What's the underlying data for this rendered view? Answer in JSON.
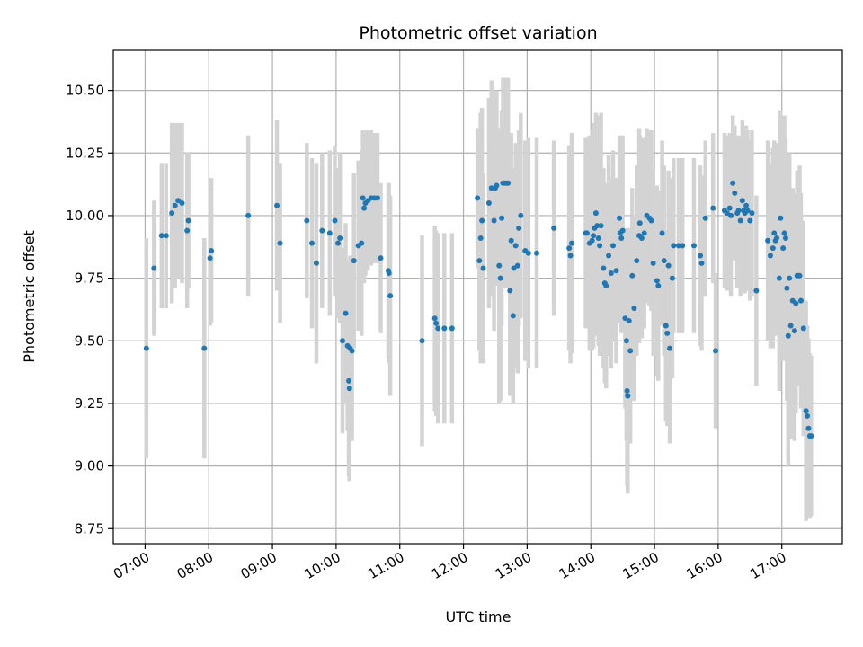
{
  "chart_data": {
    "type": "scatter",
    "title": "Photometric offset variation",
    "xlabel": "UTC time",
    "ylabel": "Photometric offset",
    "x_unit": "hours UTC",
    "xlim": [
      6.5,
      17.95
    ],
    "ylim": [
      8.69,
      10.66
    ],
    "x_ticks": [
      {
        "value": 7,
        "label": "07:00"
      },
      {
        "value": 8,
        "label": "08:00"
      },
      {
        "value": 9,
        "label": "09:00"
      },
      {
        "value": 10,
        "label": "10:00"
      },
      {
        "value": 11,
        "label": "11:00"
      },
      {
        "value": 12,
        "label": "12:00"
      },
      {
        "value": 13,
        "label": "13:00"
      },
      {
        "value": 14,
        "label": "14:00"
      },
      {
        "value": 15,
        "label": "15:00"
      },
      {
        "value": 16,
        "label": "16:00"
      },
      {
        "value": 17,
        "label": "17:00"
      }
    ],
    "y_ticks": [
      {
        "value": 8.75,
        "label": "8.75"
      },
      {
        "value": 9.0,
        "label": "9.00"
      },
      {
        "value": 9.25,
        "label": "9.25"
      },
      {
        "value": 9.5,
        "label": "9.50"
      },
      {
        "value": 9.75,
        "label": "9.75"
      },
      {
        "value": 10.0,
        "label": "10.00"
      },
      {
        "value": 10.25,
        "label": "10.25"
      },
      {
        "value": 10.5,
        "label": "10.50"
      }
    ],
    "grid": true,
    "legend": "none",
    "marker_color": "#1f77b4",
    "errorbar_color": "#d3d3d3",
    "series": [
      {
        "points": [
          [
            7.02,
            9.47,
            0.44
          ],
          [
            7.14,
            9.79,
            0.27
          ],
          [
            7.26,
            9.92,
            0.29
          ],
          [
            7.33,
            9.92,
            0.29
          ],
          [
            7.42,
            10.01,
            0.36
          ],
          [
            7.47,
            10.04,
            0.33
          ],
          [
            7.52,
            10.06,
            0.31
          ],
          [
            7.58,
            10.05,
            0.32
          ],
          [
            7.66,
            9.94,
            0.31
          ],
          [
            7.68,
            9.98,
            0.27
          ],
          [
            7.93,
            9.47,
            0.44
          ],
          [
            8.02,
            9.83,
            0.27
          ],
          [
            8.04,
            9.86,
            0.29
          ],
          [
            8.62,
            10.0,
            0.32
          ],
          [
            9.07,
            10.04,
            0.34
          ],
          [
            9.12,
            9.89,
            0.32
          ],
          [
            9.54,
            9.98,
            0.31
          ],
          [
            9.62,
            9.89,
            0.34
          ],
          [
            9.69,
            9.81,
            0.4
          ],
          [
            9.78,
            9.94,
            0.31
          ],
          [
            9.9,
            9.93,
            0.33
          ],
          [
            9.98,
            9.98,
            0.3
          ],
          [
            10.03,
            9.89,
            0.3
          ],
          [
            10.06,
            9.91,
            0.34
          ],
          [
            10.1,
            9.5,
            0.37
          ],
          [
            10.15,
            9.61,
            0.36
          ],
          [
            10.18,
            9.48,
            0.34
          ],
          [
            10.2,
            9.34,
            0.38
          ],
          [
            10.21,
            9.31,
            0.37
          ],
          [
            10.22,
            9.47,
            0.37
          ],
          [
            10.25,
            9.46,
            0.36
          ],
          [
            10.28,
            9.82,
            0.35
          ],
          [
            10.35,
            9.88,
            0.34
          ],
          [
            10.4,
            9.89,
            0.37
          ],
          [
            10.42,
            10.07,
            0.27
          ],
          [
            10.44,
            10.03,
            0.3
          ],
          [
            10.46,
            10.05,
            0.29
          ],
          [
            10.5,
            10.06,
            0.28
          ],
          [
            10.55,
            10.07,
            0.27
          ],
          [
            10.6,
            10.07,
            0.26
          ],
          [
            10.65,
            10.07,
            0.26
          ],
          [
            10.7,
            9.83,
            0.3
          ],
          [
            10.82,
            9.78,
            0.35
          ],
          [
            10.83,
            9.77,
            0.36
          ],
          [
            10.85,
            9.68,
            0.4
          ],
          [
            11.35,
            9.5,
            0.42
          ],
          [
            11.55,
            9.59,
            0.37
          ],
          [
            11.57,
            9.57,
            0.37
          ],
          [
            11.6,
            9.55,
            0.38
          ],
          [
            11.7,
            9.55,
            0.38
          ],
          [
            11.82,
            9.55,
            0.38
          ],
          [
            12.22,
            10.07,
            0.28
          ],
          [
            12.25,
            9.82,
            0.36
          ],
          [
            12.27,
            9.91,
            0.5
          ],
          [
            12.29,
            9.98,
            0.45
          ],
          [
            12.31,
            9.79,
            0.38
          ],
          [
            12.4,
            10.05,
            0.42
          ],
          [
            12.44,
            10.11,
            0.43
          ],
          [
            12.48,
            9.98,
            0.44
          ],
          [
            12.5,
            10.11,
            0.39
          ],
          [
            12.52,
            10.12,
            0.38
          ],
          [
            12.56,
            9.8,
            0.55
          ],
          [
            12.58,
            9.75,
            0.49
          ],
          [
            12.6,
            9.99,
            0.43
          ],
          [
            12.62,
            10.13,
            0.42
          ],
          [
            12.65,
            10.13,
            0.42
          ],
          [
            12.68,
            10.13,
            0.42
          ],
          [
            12.7,
            10.13,
            0.42
          ],
          [
            12.73,
            9.7,
            0.42
          ],
          [
            12.75,
            9.9,
            0.43
          ],
          [
            12.78,
            9.6,
            0.35
          ],
          [
            12.79,
            9.79,
            0.4
          ],
          [
            12.82,
            9.88,
            0.41
          ],
          [
            12.85,
            9.8,
            0.43
          ],
          [
            12.87,
            9.95,
            0.39
          ],
          [
            12.9,
            10.0,
            0.41
          ],
          [
            12.97,
            9.86,
            0.44
          ],
          [
            13.02,
            9.85,
            0.46
          ],
          [
            13.15,
            9.85,
            0.46
          ],
          [
            13.42,
            9.95,
            0.35
          ],
          [
            13.66,
            9.87,
            0.41
          ],
          [
            13.68,
            9.84,
            0.43
          ],
          [
            13.7,
            9.89,
            0.44
          ],
          [
            13.92,
            9.93,
            0.38
          ],
          [
            13.94,
            9.93,
            0.38
          ],
          [
            13.98,
            9.89,
            0.43
          ],
          [
            14.02,
            9.9,
            0.44
          ],
          [
            14.04,
            9.92,
            0.45
          ],
          [
            14.06,
            9.95,
            0.42
          ],
          [
            14.08,
            10.01,
            0.4
          ],
          [
            14.1,
            9.96,
            0.44
          ],
          [
            14.12,
            9.91,
            0.43
          ],
          [
            14.14,
            9.88,
            0.44
          ],
          [
            14.16,
            9.96,
            0.45
          ],
          [
            14.2,
            9.79,
            0.4
          ],
          [
            14.22,
            9.73,
            0.4
          ],
          [
            14.24,
            9.72,
            0.41
          ],
          [
            14.28,
            9.84,
            0.4
          ],
          [
            14.32,
            9.77,
            0.38
          ],
          [
            14.35,
            9.88,
            0.38
          ],
          [
            14.4,
            9.78,
            0.37
          ],
          [
            14.45,
            9.99,
            0.33
          ],
          [
            14.46,
            9.93,
            0.36
          ],
          [
            14.48,
            9.91,
            0.38
          ],
          [
            14.5,
            9.94,
            0.38
          ],
          [
            14.54,
            9.59,
            0.36
          ],
          [
            14.56,
            9.5,
            0.4
          ],
          [
            14.57,
            9.3,
            0.38
          ],
          [
            14.58,
            9.28,
            0.39
          ],
          [
            14.6,
            9.58,
            0.37
          ],
          [
            14.62,
            9.46,
            0.37
          ],
          [
            14.65,
            9.76,
            0.35
          ],
          [
            14.68,
            9.63,
            0.37
          ],
          [
            14.72,
            9.82,
            0.38
          ],
          [
            14.76,
            9.92,
            0.43
          ],
          [
            14.77,
            9.97,
            0.35
          ],
          [
            14.8,
            9.91,
            0.4
          ],
          [
            14.84,
            9.93,
            0.38
          ],
          [
            14.88,
            10.0,
            0.35
          ],
          [
            14.92,
            9.99,
            0.35
          ],
          [
            14.95,
            9.98,
            0.36
          ],
          [
            14.98,
            9.81,
            0.37
          ],
          [
            15.04,
            9.74,
            0.38
          ],
          [
            15.06,
            9.72,
            0.38
          ],
          [
            15.12,
            9.93,
            0.37
          ],
          [
            15.15,
            9.82,
            0.38
          ],
          [
            15.18,
            9.56,
            0.38
          ],
          [
            15.2,
            9.53,
            0.37
          ],
          [
            15.22,
            9.8,
            0.38
          ],
          [
            15.24,
            9.47,
            0.38
          ],
          [
            15.28,
            9.75,
            0.4
          ],
          [
            15.3,
            9.88,
            0.35
          ],
          [
            15.38,
            9.88,
            0.35
          ],
          [
            15.44,
            9.88,
            0.35
          ],
          [
            15.62,
            9.88,
            0.35
          ],
          [
            15.72,
            9.84,
            0.36
          ],
          [
            15.74,
            9.81,
            0.35
          ],
          [
            15.8,
            9.99,
            0.31
          ],
          [
            15.92,
            10.03,
            0.3
          ],
          [
            15.96,
            9.46,
            0.31
          ],
          [
            16.1,
            10.02,
            0.31
          ],
          [
            16.14,
            10.01,
            0.31
          ],
          [
            16.18,
            10.03,
            0.3
          ],
          [
            16.2,
            10.0,
            0.32
          ],
          [
            16.23,
            10.13,
            0.27
          ],
          [
            16.26,
            10.09,
            0.27
          ],
          [
            16.3,
            10.01,
            0.3
          ],
          [
            16.32,
            10.02,
            0.3
          ],
          [
            16.35,
            9.98,
            0.3
          ],
          [
            16.38,
            10.06,
            0.32
          ],
          [
            16.4,
            10.02,
            0.32
          ],
          [
            16.42,
            10.01,
            0.32
          ],
          [
            16.44,
            10.04,
            0.32
          ],
          [
            16.46,
            10.02,
            0.32
          ],
          [
            16.5,
            9.98,
            0.32
          ],
          [
            16.53,
            10.01,
            0.33
          ],
          [
            16.6,
            9.7,
            0.38
          ],
          [
            16.78,
            9.9,
            0.4
          ],
          [
            16.82,
            9.84,
            0.37
          ],
          [
            16.86,
            9.87,
            0.4
          ],
          [
            16.88,
            9.93,
            0.37
          ],
          [
            16.9,
            9.9,
            0.38
          ],
          [
            16.92,
            9.91,
            0.38
          ],
          [
            16.96,
            9.75,
            0.45
          ],
          [
            16.98,
            9.99,
            0.43
          ],
          [
            17.02,
            9.87,
            0.45
          ],
          [
            17.04,
            9.93,
            0.47
          ],
          [
            17.06,
            9.91,
            0.4
          ],
          [
            17.08,
            9.71,
            0.45
          ],
          [
            17.1,
            9.52,
            0.52
          ],
          [
            17.12,
            9.75,
            0.5
          ],
          [
            17.14,
            9.56,
            0.45
          ],
          [
            17.17,
            9.66,
            0.45
          ],
          [
            17.2,
            9.54,
            0.44
          ],
          [
            17.22,
            9.65,
            0.44
          ],
          [
            17.24,
            9.76,
            0.42
          ],
          [
            17.26,
            9.76,
            0.42
          ],
          [
            17.28,
            9.76,
            0.44
          ],
          [
            17.3,
            9.66,
            0.43
          ],
          [
            17.34,
            9.55,
            0.43
          ],
          [
            17.38,
            9.22,
            0.44
          ],
          [
            17.4,
            9.2,
            0.36
          ],
          [
            17.42,
            9.15,
            0.36
          ],
          [
            17.44,
            9.12,
            0.33
          ],
          [
            17.46,
            9.12,
            0.32
          ]
        ]
      }
    ]
  }
}
